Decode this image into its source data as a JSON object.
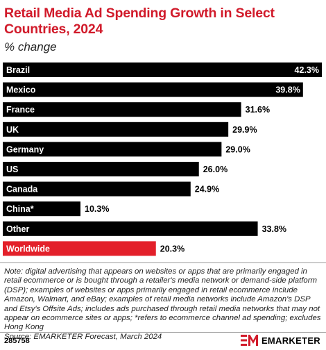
{
  "title": "Retail Media Ad Spending Growth in Select Countries, 2024",
  "subtitle": "% change",
  "chart_data": {
    "type": "bar",
    "orientation": "horizontal",
    "categories": [
      "Brazil",
      "Mexico",
      "France",
      "UK",
      "Germany",
      "US",
      "Canada",
      "China*",
      "Other",
      "Worldwide"
    ],
    "values": [
      42.3,
      39.8,
      31.6,
      29.9,
      29.0,
      26.0,
      24.9,
      10.3,
      33.8,
      20.3
    ],
    "labels": [
      "42.3%",
      "39.8%",
      "31.6%",
      "29.9%",
      "29.0%",
      "26.0%",
      "24.9%",
      "10.3%",
      "33.8%",
      "20.3%"
    ],
    "highlight": "Worldwide",
    "xlim": [
      0,
      42.3
    ],
    "grid": false,
    "colors": {
      "bar": "#000000",
      "highlight": "#e3202a",
      "bar_text": "#ffffff"
    }
  },
  "note": "Note: digital advertising that appears on websites or apps that are primarily engaged in retail ecommerce or is bought through a retailer's media network or demand-side platform (DSP); examples of websites or apps primarily engaged in retail ecommerce include Amazon, Walmart, and eBay; examples of retail media networks include Amazon's DSP and Etsy's Offsite Ads; includes ads purchased through retail media networks that may not appear on ecommerce sites or apps; *refers to ecommerce channel ad spending; excludes Hong Kong",
  "source": "Source: EMARKETER Forecast, March 2024",
  "footer": {
    "chart_id": "285758",
    "brand": "EMARKETER",
    "logo_icon": "em-logo-icon",
    "brand_color": "#d11a2a"
  }
}
